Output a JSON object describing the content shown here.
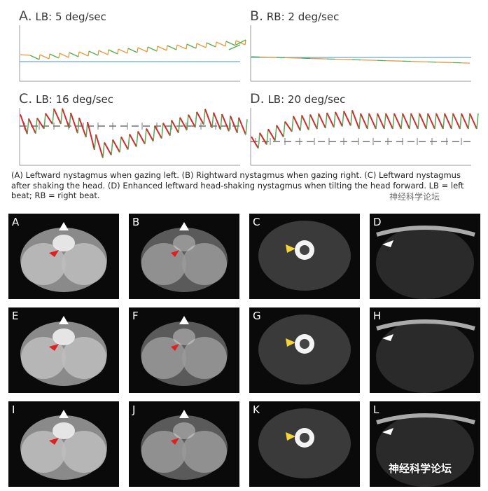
{
  "panels": [
    {
      "letter": "A.",
      "label": "LB: 5 deg/sec"
    },
    {
      "letter": "B.",
      "label": "RB: 2 deg/sec"
    },
    {
      "letter": "C.",
      "label": "LB: 16 deg/sec"
    },
    {
      "letter": "D.",
      "label": "LB: 20 deg/sec"
    }
  ],
  "caption": "(A) Leftward nystagmus when gazing left. (B) Rightward nystagmus when gazing right. (C) Leftward nystagmus after shaking the head. (D) Enhanced leftward head-shaking nystagmus when tilting the head forward. LB = left beat; RB = right beat.",
  "watermark_top": "神经科学论坛",
  "watermark_bottom": "神经科学论坛",
  "mri_labels": [
    "A",
    "B",
    "C",
    "D",
    "E",
    "F",
    "G",
    "H",
    "I",
    "J",
    "K",
    "L"
  ],
  "colors": {
    "green": "#4caf50",
    "orange": "#e69a3c",
    "red": "#d9262d",
    "blue": "#6aa8e0",
    "dash": "#555555",
    "arrow_red": "#e02020",
    "arrow_yellow": "#f3d53a",
    "arrow_white": "#ffffff"
  }
}
